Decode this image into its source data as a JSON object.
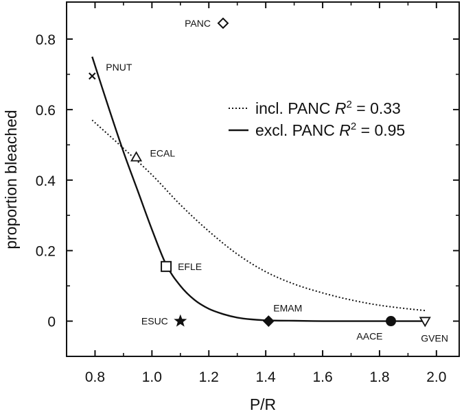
{
  "chart_data": {
    "type": "scatter",
    "xlabel": "P/R",
    "ylabel": "proportion bleached",
    "xlim": [
      0.7,
      2.08
    ],
    "ylim": [
      -0.1,
      0.905
    ],
    "xticks": [
      0.8,
      1.0,
      1.2,
      1.4,
      1.6,
      1.8,
      2.0
    ],
    "xtick_labels": [
      "0.8",
      "1.0",
      "1.2",
      "1.4",
      "1.6",
      "1.8",
      "2.0"
    ],
    "yticks": [
      0,
      0.2,
      0.4,
      0.6,
      0.8
    ],
    "ytick_labels": [
      "0",
      "0.2",
      "0.4",
      "0.6",
      "0.8"
    ],
    "grid": false,
    "legend_position": "center-right",
    "points": [
      {
        "label": "PANC",
        "x": 1.25,
        "y": 0.845,
        "marker": "diamond-open"
      },
      {
        "label": "PNUT",
        "x": 0.79,
        "y": 0.695,
        "marker": "x"
      },
      {
        "label": "ECAL",
        "x": 0.945,
        "y": 0.465,
        "marker": "triangle-up-open"
      },
      {
        "label": "EFLE",
        "x": 1.05,
        "y": 0.155,
        "marker": "square-open"
      },
      {
        "label": "ESUC",
        "x": 1.1,
        "y": 0.0,
        "marker": "star"
      },
      {
        "label": "EMAM",
        "x": 1.41,
        "y": 0.0,
        "marker": "diamond-filled"
      },
      {
        "label": "AACE",
        "x": 1.84,
        "y": 0.0,
        "marker": "circle-filled"
      },
      {
        "label": "GVEN",
        "x": 1.96,
        "y": 0.0,
        "marker": "triangle-down-open"
      }
    ],
    "series": [
      {
        "name": "incl. PANC",
        "r2_label": "= 0.33",
        "style": "dotted",
        "x": [
          0.79,
          0.9,
          1.0,
          1.1,
          1.2,
          1.3,
          1.4,
          1.5,
          1.6,
          1.7,
          1.8,
          1.9,
          1.96
        ],
        "y": [
          0.57,
          0.49,
          0.415,
          0.33,
          0.255,
          0.19,
          0.14,
          0.105,
          0.08,
          0.06,
          0.045,
          0.035,
          0.03
        ]
      },
      {
        "name": "excl. PANC",
        "r2_label": "= 0.95",
        "style": "solid",
        "x": [
          0.79,
          0.85,
          0.9,
          0.95,
          1.0,
          1.05,
          1.1,
          1.15,
          1.2,
          1.25,
          1.3,
          1.35,
          1.41,
          1.5,
          1.6,
          1.7,
          1.8,
          1.9,
          1.96
        ],
        "y": [
          0.75,
          0.6,
          0.48,
          0.37,
          0.26,
          0.16,
          0.1,
          0.06,
          0.035,
          0.02,
          0.01,
          0.005,
          0.002,
          0.001,
          0.0,
          0.0,
          0.0,
          0.0,
          0.0
        ]
      }
    ],
    "legend_r2_prefix": "R",
    "legend_r2_superscript": "2"
  }
}
